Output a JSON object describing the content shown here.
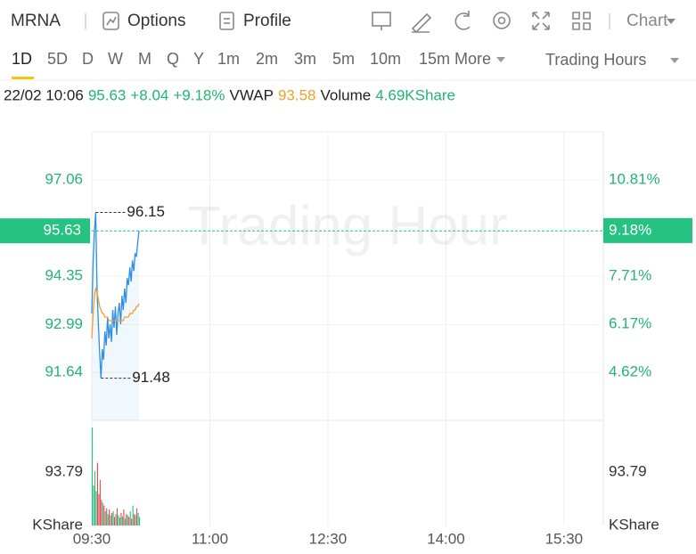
{
  "toolbar": {
    "symbol": "MRNA",
    "tabs": [
      "Options",
      "Profile"
    ],
    "chart_menu": "Chart"
  },
  "periods": {
    "items": [
      "1D",
      "5D",
      "D",
      "W",
      "M",
      "Q",
      "Y",
      "1m",
      "2m",
      "3m",
      "5m",
      "10m",
      "15m"
    ],
    "active": 0,
    "more": "More",
    "session": "Trading Hours"
  },
  "quote": {
    "time": "22/02 10:06",
    "price": "95.63",
    "change": "+8.04",
    "change_pct": "+9.18%",
    "vwap_label": "VWAP",
    "vwap": "93.58",
    "volume_label": "Volume",
    "volume": "4.69KShare"
  },
  "chart_data": {
    "type": "line",
    "watermark": "Trading Hour",
    "x": [
      "09:30",
      "09:31",
      "09:32",
      "09:33",
      "09:34",
      "09:35",
      "09:36",
      "09:37",
      "09:38",
      "09:39",
      "09:40",
      "09:41",
      "09:42",
      "09:43",
      "09:44",
      "09:45",
      "09:46",
      "09:47",
      "09:48",
      "09:49",
      "09:50",
      "09:51",
      "09:52",
      "09:53",
      "09:54",
      "09:55",
      "09:56",
      "09:57",
      "09:58",
      "09:59",
      "10:00",
      "10:01",
      "10:02",
      "10:03",
      "10:04",
      "10:05",
      "10:06"
    ],
    "xlim": [
      "09:30",
      "16:00"
    ],
    "xticks": [
      "09:30",
      "11:00",
      "12:30",
      "14:00",
      "15:30"
    ],
    "ylim": [
      90.29,
      98.42
    ],
    "yticks": [
      97.06,
      94.35,
      92.99,
      91.64
    ],
    "y2lim": [
      3.07,
      12.36
    ],
    "y2ticks": [
      {
        "value": 10.81,
        "label": "10.81%"
      },
      {
        "value": 7.71,
        "label": "7.71%"
      },
      {
        "value": 6.17,
        "label": "6.17%"
      },
      {
        "value": 4.62,
        "label": "4.62%"
      }
    ],
    "grid": true,
    "series": [
      {
        "name": "Price",
        "color": "#2f8ee5",
        "values": [
          93.3,
          94.8,
          95.6,
          96.15,
          94.0,
          93.0,
          92.2,
          91.48,
          92.3,
          92.0,
          92.8,
          92.4,
          93.2,
          92.6,
          93.0,
          92.5,
          93.4,
          92.9,
          93.5,
          92.7,
          93.3,
          93.6,
          93.0,
          93.8,
          93.4,
          94.0,
          93.6,
          94.3,
          94.1,
          94.6,
          94.2,
          94.8,
          94.5,
          95.0,
          94.9,
          95.3,
          95.63
        ]
      },
      {
        "name": "VWAP",
        "color": "#f0a030",
        "values": [
          92.6,
          93.3,
          93.8,
          94.0,
          93.9,
          93.7,
          93.5,
          93.4,
          93.3,
          93.3,
          93.2,
          93.2,
          93.2,
          93.1,
          93.1,
          93.1,
          93.1,
          93.1,
          93.1,
          93.1,
          93.1,
          93.1,
          93.1,
          93.1,
          93.1,
          93.2,
          93.2,
          93.2,
          93.2,
          93.3,
          93.3,
          93.3,
          93.4,
          93.4,
          93.5,
          93.5,
          93.58
        ]
      }
    ],
    "last_price_line": {
      "y": 95.63,
      "y2": {
        "value": 9.18,
        "label": "9.18%"
      },
      "color": "#26c281"
    },
    "annotations": [
      {
        "x": "09:33",
        "y": 96.15
      },
      {
        "x": "09:37",
        "y": 91.48
      }
    ],
    "volume": {
      "values": [
        172,
        70,
        95,
        60,
        110,
        55,
        80,
        45,
        40,
        35,
        25,
        30,
        20,
        28,
        18,
        22,
        25,
        15,
        20,
        30,
        18,
        14,
        22,
        16,
        28,
        12,
        20,
        18,
        15,
        25,
        12,
        35,
        20,
        18,
        30,
        22,
        15
      ],
      "ylim": [
        0,
        184.4
      ],
      "yticks": [
        93.79
      ],
      "unit": "KShare",
      "up_color": "#26c281",
      "down_color": "#e8474c"
    }
  }
}
